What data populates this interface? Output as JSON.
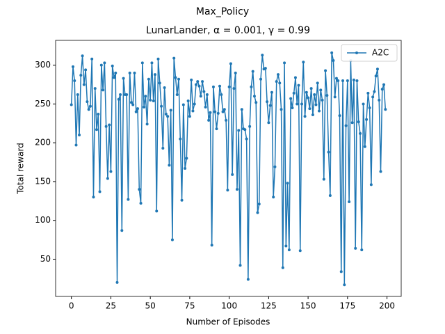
{
  "chart_data": {
    "type": "line",
    "suptitle": "Max_Policy",
    "title": "LunarLander, α = 0.001, γ = 0.99",
    "xlabel": "Number of Episodes",
    "ylabel": "Total reward",
    "xlim": [
      -10,
      209
    ],
    "ylim": [
      2,
      332
    ],
    "xticks": [
      0,
      25,
      50,
      75,
      100,
      125,
      150,
      175,
      200
    ],
    "yticks": [
      50,
      100,
      150,
      200,
      250,
      300
    ],
    "legend": "upper right",
    "x": [
      0,
      1,
      2,
      3,
      4,
      5,
      6,
      7,
      8,
      9,
      10,
      11,
      12,
      13,
      14,
      15,
      16,
      17,
      18,
      19,
      20,
      21,
      22,
      23,
      24,
      25,
      26,
      27,
      28,
      29,
      30,
      31,
      32,
      33,
      34,
      35,
      36,
      37,
      38,
      39,
      40,
      41,
      42,
      43,
      44,
      45,
      46,
      47,
      48,
      49,
      50,
      51,
      52,
      53,
      54,
      55,
      56,
      57,
      58,
      59,
      60,
      61,
      62,
      63,
      64,
      65,
      66,
      67,
      68,
      69,
      70,
      71,
      72,
      73,
      74,
      75,
      76,
      77,
      78,
      79,
      80,
      81,
      82,
      83,
      84,
      85,
      86,
      87,
      88,
      89,
      90,
      91,
      92,
      93,
      94,
      95,
      96,
      97,
      98,
      99,
      100,
      101,
      102,
      103,
      104,
      105,
      106,
      107,
      108,
      109,
      110,
      111,
      112,
      113,
      114,
      115,
      116,
      117,
      118,
      119,
      120,
      121,
      122,
      123,
      124,
      125,
      126,
      127,
      128,
      129,
      130,
      131,
      132,
      133,
      134,
      135,
      136,
      137,
      138,
      139,
      140,
      141,
      142,
      143,
      144,
      145,
      146,
      147,
      148,
      149,
      150,
      151,
      152,
      153,
      154,
      155,
      156,
      157,
      158,
      159,
      160,
      161,
      162,
      163,
      164,
      165,
      166,
      167,
      168,
      169,
      170,
      171,
      172,
      173,
      174,
      175,
      176,
      177,
      178,
      179,
      180,
      181,
      182,
      183,
      184,
      185,
      186,
      187,
      188,
      189,
      190,
      191,
      192,
      193,
      194,
      195,
      196,
      197,
      198,
      199
    ],
    "series": [
      {
        "name": "A2C",
        "color": "#1f77b4",
        "values": [
          249,
          298,
          280,
          197,
          262,
          210,
          287,
          312,
          275,
          294,
          253,
          243,
          247,
          308,
          130,
          270,
          217,
          237,
          137,
          300,
          268,
          303,
          221,
          154,
          223,
          163,
          299,
          284,
          290,
          20,
          256,
          262,
          87,
          283,
          262,
          262,
          127,
          290,
          252,
          249,
          290,
          240,
          244,
          140,
          122,
          303,
          246,
          260,
          224,
          282,
          255,
          303,
          254,
          288,
          112,
          308,
          277,
          247,
          193,
          271,
          237,
          234,
          171,
          242,
          75,
          309,
          284,
          262,
          282,
          205,
          126,
          249,
          167,
          180,
          254,
          234,
          281,
          241,
          250,
          275,
          279,
          273,
          260,
          279,
          266,
          246,
          262,
          229,
          239,
          68,
          272,
          240,
          218,
          238,
          273,
          262,
          240,
          243,
          229,
          139,
          272,
          302,
          159,
          270,
          290,
          140,
          216,
          42,
          243,
          218,
          217,
          205,
          24,
          221,
          272,
          292,
          260,
          252,
          110,
          121,
          282,
          313,
          295,
          296,
          253,
          226,
          248,
          265,
          130,
          169,
          279,
          288,
          277,
          243,
          39,
          303,
          67,
          148,
          62,
          257,
          245,
          264,
          284,
          250,
          274,
          61,
          250,
          304,
          234,
          265,
          258,
          244,
          270,
          236,
          262,
          249,
          277,
          241,
          268,
          255,
          153,
          293,
          261,
          188,
          132,
          316,
          306,
          259,
          283,
          280,
          235,
          34,
          280,
          17,
          222,
          280,
          124,
          306,
          226,
          281,
          64,
          280,
          227,
          212,
          62,
          250,
          195,
          230,
          264,
          245,
          146,
          259,
          266,
          286,
          295,
          255,
          163,
          269,
          275,
          243
        ]
      }
    ]
  }
}
